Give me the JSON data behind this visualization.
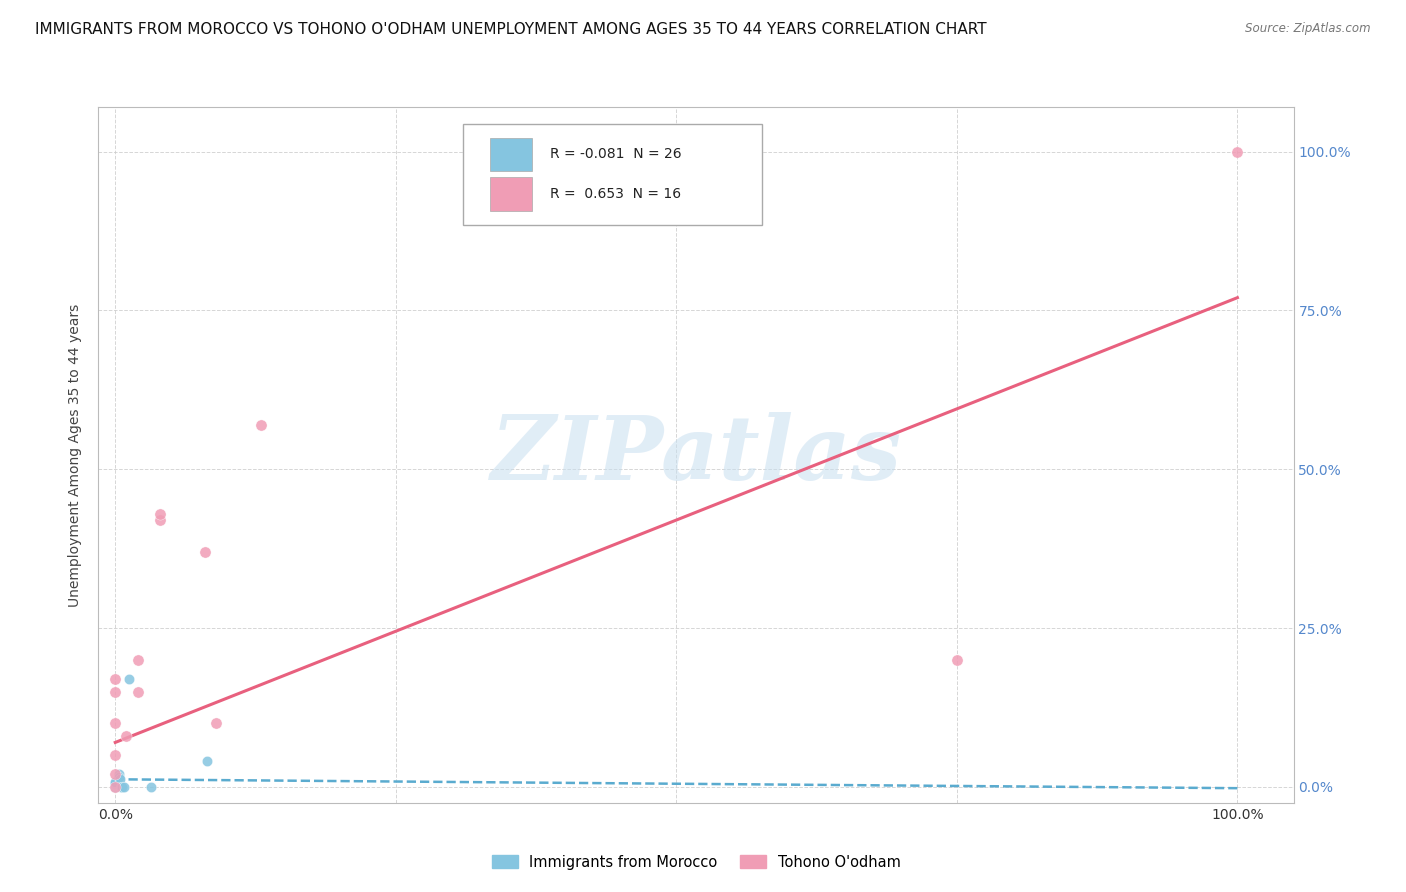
{
  "title": "IMMIGRANTS FROM MOROCCO VS TOHONO O'ODHAM UNEMPLOYMENT AMONG AGES 35 TO 44 YEARS CORRELATION CHART",
  "source": "Source: ZipAtlas.com",
  "ylabel": "Unemployment Among Ages 35 to 44 years",
  "ytick_values": [
    0.0,
    0.25,
    0.5,
    0.75,
    1.0
  ],
  "ytick_labels_right": [
    "0.0%",
    "25.0%",
    "50.0%",
    "75.0%",
    "100.0%"
  ],
  "xtick_values": [
    0.0,
    0.25,
    0.5,
    0.75,
    1.0
  ],
  "xtick_labels": [
    "0.0%",
    "",
    "",
    "",
    "100.0%"
  ],
  "legend_label1": "Immigrants from Morocco",
  "legend_label2": "Tohono O'odham",
  "series1": {
    "name": "Immigrants from Morocco",
    "color": "#85c5e0",
    "line_color": "#5aabcf",
    "R": -0.081,
    "N": 26,
    "scatter_x": [
      0.0,
      0.0,
      0.0,
      0.0,
      0.0,
      0.0,
      0.0,
      0.0,
      0.0,
      0.0,
      0.0,
      0.0,
      0.0,
      0.0,
      0.0,
      0.0,
      0.0,
      0.003,
      0.003,
      0.004,
      0.005,
      0.006,
      0.008,
      0.012,
      0.032,
      0.082
    ],
    "scatter_y": [
      0.0,
      0.0,
      0.0,
      0.0,
      0.0,
      0.0,
      0.0,
      0.0,
      0.0,
      0.0,
      0.002,
      0.003,
      0.003,
      0.004,
      0.005,
      0.006,
      0.007,
      0.02,
      0.015,
      0.012,
      0.0,
      0.0,
      0.0,
      0.17,
      0.0,
      0.04
    ],
    "trend_x": [
      0.0,
      1.0
    ],
    "trend_y": [
      0.012,
      -0.002
    ]
  },
  "series2": {
    "name": "Tohono O'odham",
    "color": "#f09db5",
    "line_color": "#e8607e",
    "R": 0.653,
    "N": 16,
    "scatter_x": [
      0.0,
      0.0,
      0.0,
      0.0,
      0.0,
      0.0,
      0.02,
      0.04,
      0.08,
      0.13,
      0.75,
      1.0,
      0.01,
      0.02,
      0.04,
      0.09
    ],
    "scatter_y": [
      0.0,
      0.02,
      0.05,
      0.1,
      0.15,
      0.17,
      0.2,
      0.42,
      0.37,
      0.57,
      0.2,
      1.0,
      0.08,
      0.15,
      0.43,
      0.1
    ],
    "trend_x": [
      0.0,
      1.0
    ],
    "trend_y": [
      0.07,
      0.77
    ]
  },
  "watermark_text": "ZIPatlas",
  "watermark_color": "#c8dff0",
  "background_color": "#ffffff",
  "grid_color": "#cccccc",
  "grid_style": "--",
  "axis_color": "#bbbbbb",
  "right_tick_color": "#5588cc",
  "title_fontsize": 11,
  "label_fontsize": 10,
  "tick_fontsize": 10
}
